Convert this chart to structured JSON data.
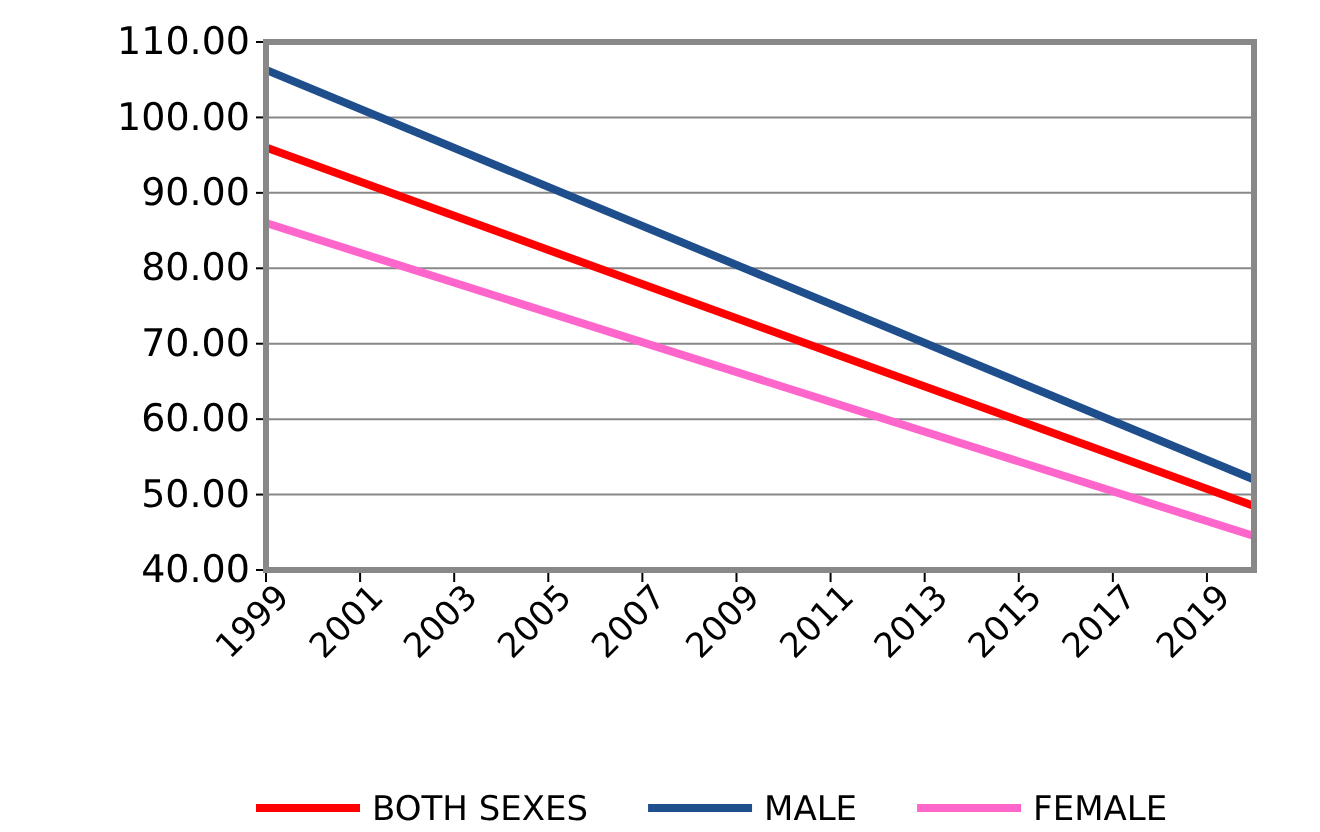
{
  "chart_data": {
    "type": "line",
    "x": [
      1999,
      2020
    ],
    "series": [
      {
        "name": "BOTH SEXES",
        "color": "#ff0000",
        "values": [
          96,
          48.5
        ]
      },
      {
        "name": "MALE",
        "color": "#1f4e8c",
        "values": [
          106.3,
          52
        ]
      },
      {
        "name": "FEMALE",
        "color": "#ff66cc",
        "values": [
          86,
          44.5
        ]
      }
    ],
    "xlim": [
      1999,
      2020
    ],
    "xticks": [
      1999,
      2001,
      2003,
      2005,
      2007,
      2009,
      2011,
      2013,
      2015,
      2017,
      2019
    ],
    "ylim": [
      40,
      110
    ],
    "yticks": [
      {
        "value": 40,
        "label": "40.00"
      },
      {
        "value": 50,
        "label": "50.00"
      },
      {
        "value": 60,
        "label": "60.00"
      },
      {
        "value": 70,
        "label": "70.00"
      },
      {
        "value": 80,
        "label": "80.00"
      },
      {
        "value": 90,
        "label": "90.00"
      },
      {
        "value": 100,
        "label": "100.00"
      },
      {
        "value": 110,
        "label": "110.00"
      }
    ],
    "grid": "y",
    "legend": "bottom",
    "marker": "none",
    "line_style": "solid"
  }
}
